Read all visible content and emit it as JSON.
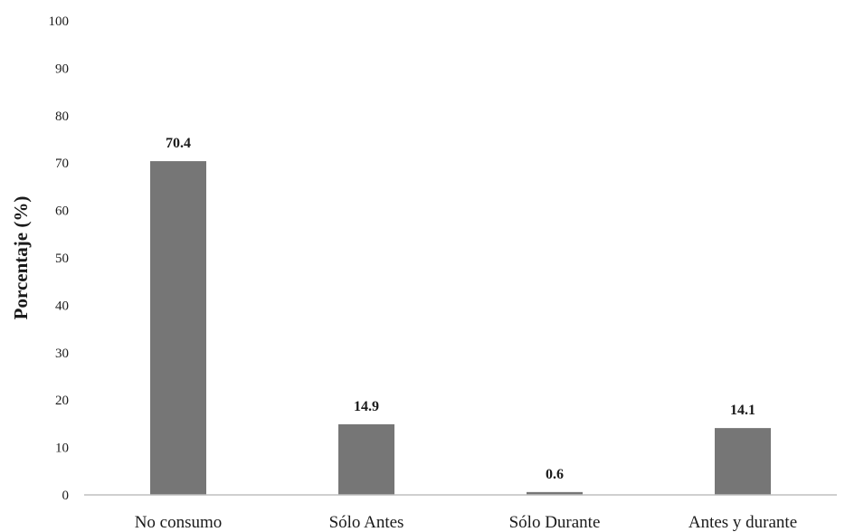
{
  "chart_data": {
    "type": "bar",
    "categories": [
      "No consumo",
      "Sólo Antes",
      "Sólo Durante",
      "Antes y durante"
    ],
    "values": [
      70.4,
      14.9,
      0.6,
      14.1
    ],
    "data_labels": [
      "70.4",
      "14.9",
      "0.6",
      "14.1"
    ],
    "title": "",
    "xlabel": "",
    "ylabel": "Porcentaje (%)",
    "ylim": [
      0,
      100
    ],
    "yticks": [
      0,
      10,
      20,
      30,
      40,
      50,
      60,
      70,
      80,
      90,
      100
    ],
    "grid": false,
    "bar_color": "#767676"
  }
}
